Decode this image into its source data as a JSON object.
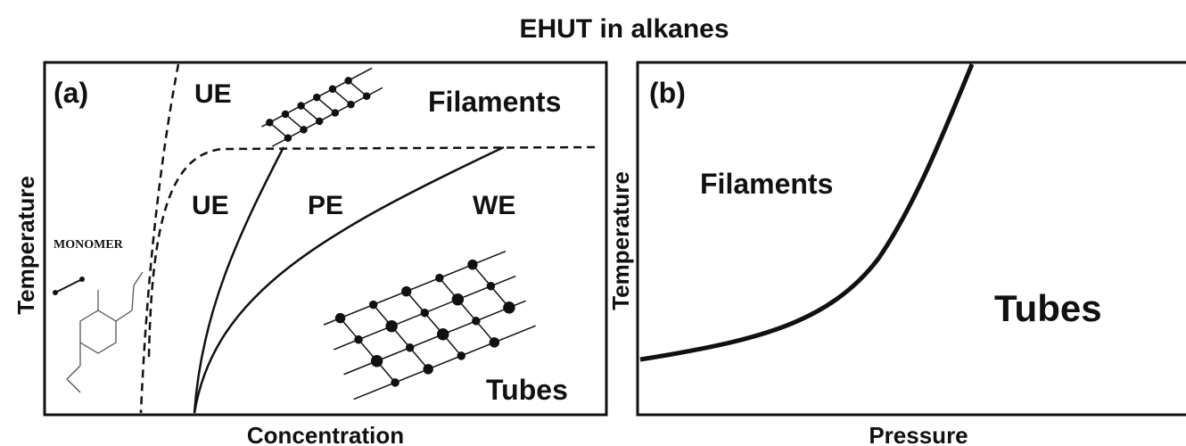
{
  "title": "EHUT in alkanes",
  "panels": [
    {
      "label": "(a)",
      "x_label": "Concentration",
      "y_label": "Temperature",
      "regions": [
        "UE",
        "Filaments",
        "UE",
        "PE",
        "WE",
        "Tubes"
      ],
      "inset_label": "MONOMER"
    },
    {
      "label": "(b)",
      "x_label": "Pressure",
      "y_label": "Temperature",
      "regions": [
        "Filaments",
        "Tubes"
      ]
    }
  ]
}
